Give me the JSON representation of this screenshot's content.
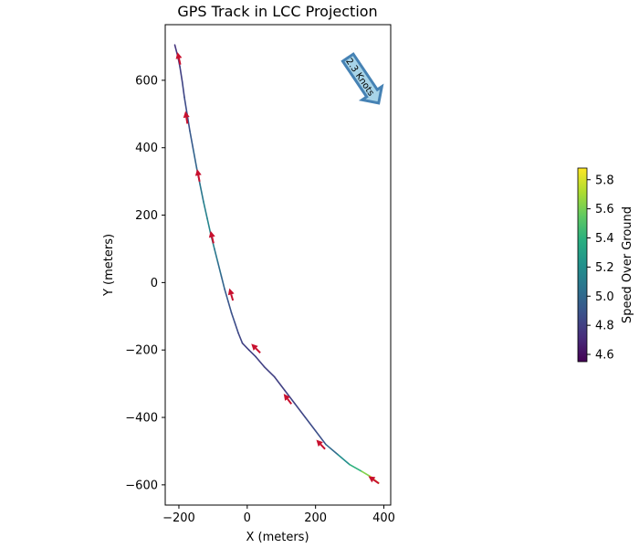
{
  "chart_data": {
    "type": "line",
    "title": "GPS Track in LCC Projection",
    "xlabel": "X (meters)",
    "ylabel": "Y (meters)",
    "xlim": [
      -240,
      420
    ],
    "ylim": [
      -660,
      765
    ],
    "xticks": [
      -200,
      0,
      200,
      400
    ],
    "yticks": [
      -600,
      -400,
      -200,
      0,
      200,
      400,
      600
    ],
    "grid": false,
    "track": {
      "x": [
        -212,
        -203,
        -197,
        -190,
        -184,
        -176,
        -168,
        -158,
        -148,
        -138,
        -128,
        -117,
        -106,
        -96,
        -86,
        -76,
        -66,
        -56,
        -46,
        -36,
        -26,
        -14,
        5,
        25,
        50,
        80,
        110,
        140,
        170,
        200,
        230,
        265,
        300,
        335,
        360,
        385
      ],
      "y": [
        705,
        670,
        640,
        595,
        550,
        500,
        450,
        395,
        340,
        290,
        240,
        190,
        140,
        100,
        60,
        20,
        -20,
        -55,
        -90,
        -120,
        -150,
        -180,
        -200,
        -220,
        -250,
        -280,
        -320,
        -360,
        -400,
        -440,
        -480,
        -510,
        -540,
        -560,
        -575,
        -595
      ],
      "speed": [
        4.75,
        4.75,
        4.8,
        4.8,
        4.85,
        4.85,
        4.9,
        4.95,
        5.0,
        5.05,
        5.1,
        5.15,
        5.15,
        5.1,
        5.05,
        5.0,
        4.95,
        4.9,
        4.9,
        4.85,
        4.85,
        4.8,
        4.8,
        4.8,
        4.8,
        4.8,
        4.8,
        4.8,
        4.85,
        4.85,
        4.9,
        5.1,
        5.3,
        5.5,
        5.75,
        5.85
      ]
    },
    "arrows": {
      "x": [
        -200,
        -178,
        -143,
        -103,
        -47,
        25,
        118,
        215,
        370
      ],
      "y": [
        665,
        490,
        318,
        135,
        -35,
        -195,
        -345,
        -480,
        -585
      ],
      "color": "#c8102e"
    },
    "colorbar": {
      "label": "Speed Over Ground",
      "min": 4.55,
      "max": 5.88,
      "ticks": [
        "4.6",
        "4.8",
        "5.0",
        "5.2",
        "5.4",
        "5.6",
        "5.8"
      ],
      "tick_values": [
        4.6,
        4.8,
        5.0,
        5.2,
        5.4,
        5.6,
        5.8
      ],
      "colormap": "viridis"
    },
    "annotation": {
      "text": "2.3 Knots",
      "color": "#add8e6",
      "edge_color": "#4682b4",
      "direction": "south-east",
      "placement": "top-right"
    }
  }
}
